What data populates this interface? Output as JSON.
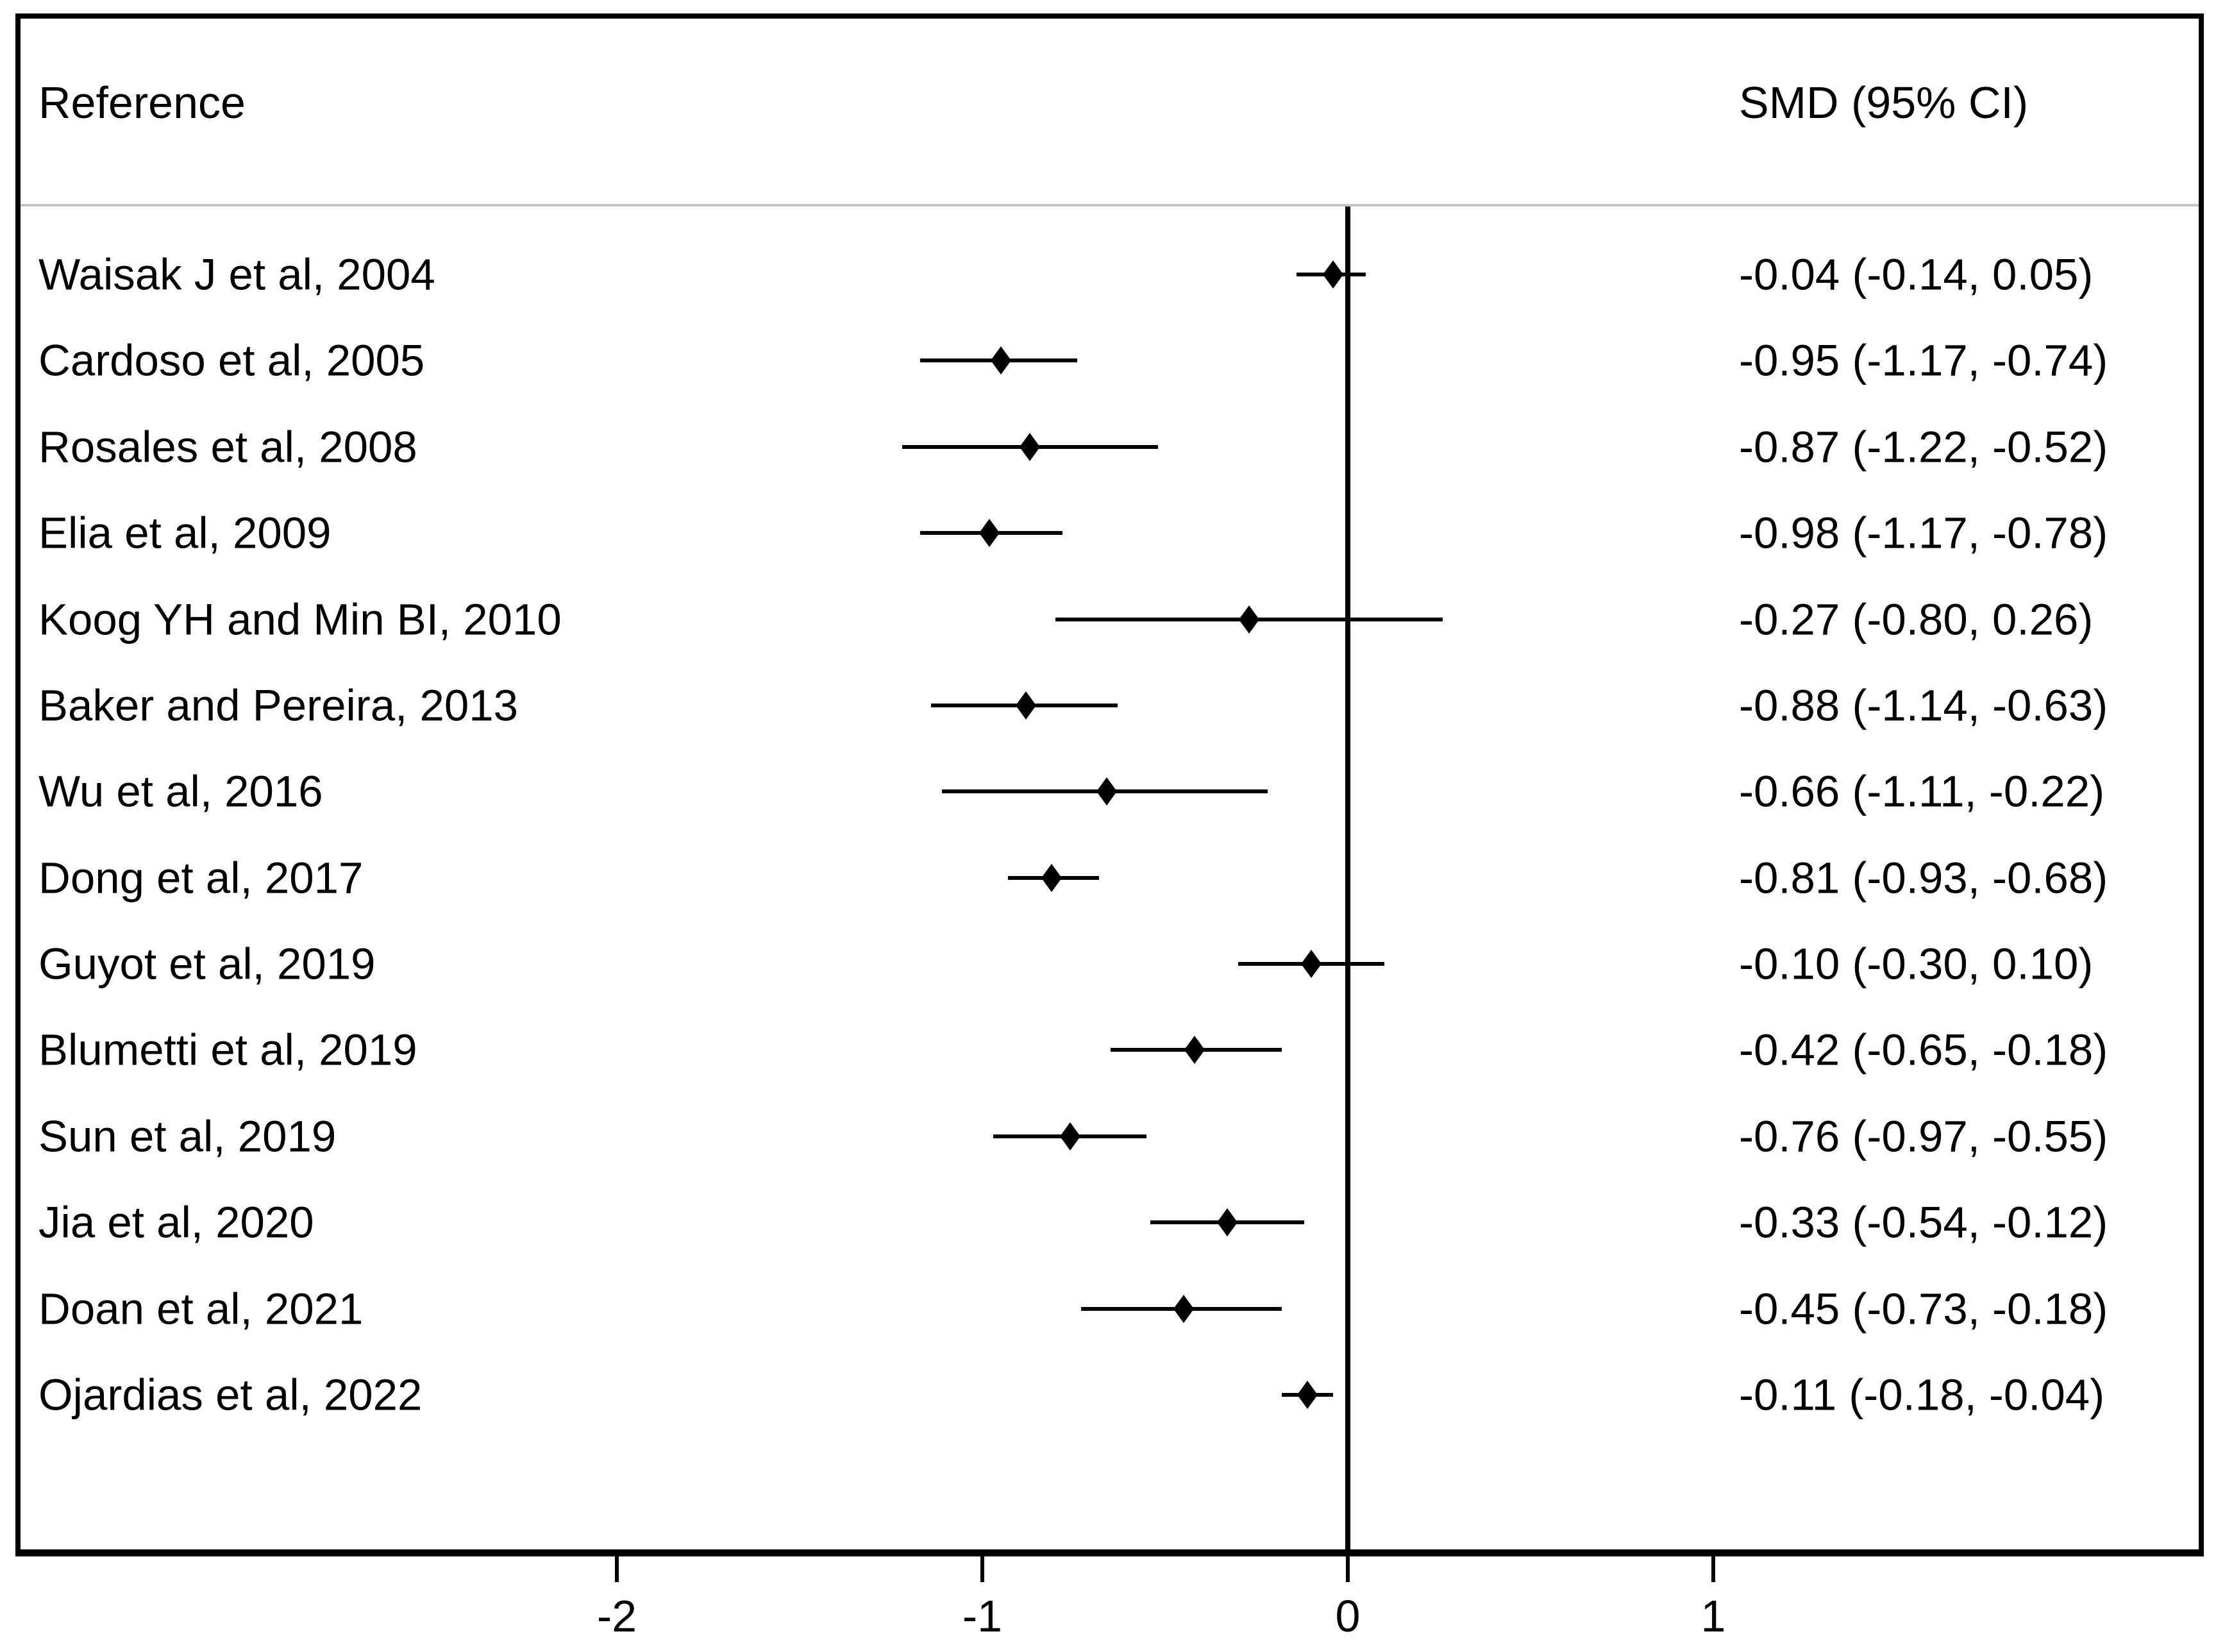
{
  "header": {
    "left": "Reference",
    "right": "SMD (95% CI)"
  },
  "colors": {
    "background": "#ffffff",
    "text": "#000000",
    "frame": "#000000",
    "separator": "#c3c3c3",
    "marker": "#000000"
  },
  "chart_data": {
    "type": "forest",
    "title": "",
    "xlabel": "",
    "x_ticks": [
      -2,
      -1,
      0,
      1
    ],
    "x_tick_labels": [
      "-2",
      "-1",
      "0",
      "1"
    ],
    "xlim": [
      -2.6,
      2.35
    ],
    "zero_reference_line_x": 0,
    "columns": [
      "Reference",
      "SMD (95% CI)"
    ],
    "studies": [
      {
        "label": "Waisak J et al, 2004",
        "smd": -0.04,
        "ci_low": -0.14,
        "ci_high": 0.05,
        "text": "-0.04 (-0.14, 0.05)"
      },
      {
        "label": "Cardoso et al, 2005",
        "smd": -0.95,
        "ci_low": -1.17,
        "ci_high": -0.74,
        "text": "-0.95 (-1.17, -0.74)"
      },
      {
        "label": "Rosales et al, 2008",
        "smd": -0.87,
        "ci_low": -1.22,
        "ci_high": -0.52,
        "text": "-0.87 (-1.22, -0.52)"
      },
      {
        "label": "Elia et al, 2009",
        "smd": -0.98,
        "ci_low": -1.17,
        "ci_high": -0.78,
        "text": "-0.98 (-1.17, -0.78)"
      },
      {
        "label": "Koog YH and Min BI, 2010",
        "smd": -0.27,
        "ci_low": -0.8,
        "ci_high": 0.26,
        "text": "-0.27 (-0.80, 0.26)"
      },
      {
        "label": "Baker and Pereira, 2013",
        "smd": -0.88,
        "ci_low": -1.14,
        "ci_high": -0.63,
        "text": "-0.88 (-1.14, -0.63)"
      },
      {
        "label": "Wu et al, 2016",
        "smd": -0.66,
        "ci_low": -1.11,
        "ci_high": -0.22,
        "text": "-0.66 (-1.11, -0.22)"
      },
      {
        "label": "Dong et al, 2017",
        "smd": -0.81,
        "ci_low": -0.93,
        "ci_high": -0.68,
        "text": "-0.81 (-0.93, -0.68)"
      },
      {
        "label": "Guyot et al, 2019",
        "smd": -0.1,
        "ci_low": -0.3,
        "ci_high": 0.1,
        "text": "-0.10 (-0.30, 0.10)"
      },
      {
        "label": "Blumetti et al, 2019",
        "smd": -0.42,
        "ci_low": -0.65,
        "ci_high": -0.18,
        "text": "-0.42 (-0.65, -0.18)"
      },
      {
        "label": "Sun et al, 2019",
        "smd": -0.76,
        "ci_low": -0.97,
        "ci_high": -0.55,
        "text": "-0.76 (-0.97, -0.55)"
      },
      {
        "label": "Jia et al, 2020",
        "smd": -0.33,
        "ci_low": -0.54,
        "ci_high": -0.12,
        "text": "-0.33 (-0.54, -0.12)"
      },
      {
        "label": "Doan et al, 2021",
        "smd": -0.45,
        "ci_low": -0.73,
        "ci_high": -0.18,
        "text": "-0.45 (-0.73, -0.18)"
      },
      {
        "label": "Ojardias et al, 2022",
        "smd": -0.11,
        "ci_low": -0.18,
        "ci_high": -0.04,
        "text": "-0.11 (-0.18, -0.04)"
      }
    ]
  }
}
